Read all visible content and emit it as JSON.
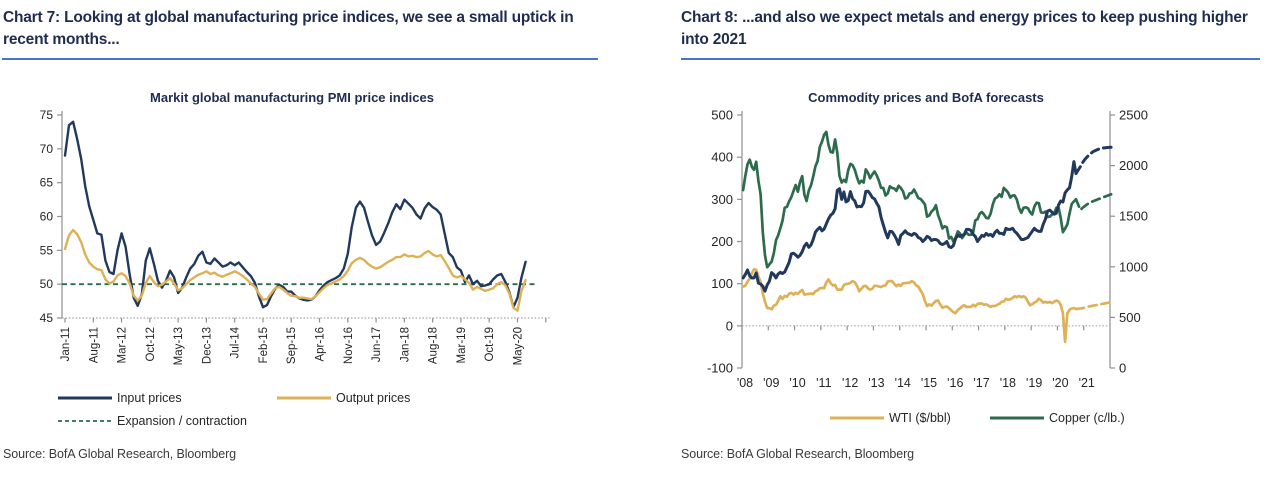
{
  "colors": {
    "heading_text": "#1f2c4f",
    "heading_rule": "#4a74c9",
    "navy": "#21395c",
    "gold": "#deb156",
    "green": "#2d6b4d",
    "axis_line": "#909090",
    "dotted_axis": "#a8a8a8",
    "tick_text": "#262626",
    "source_text": "#3a3a3a"
  },
  "panels": [
    {
      "heading": "Chart 7: Looking at global manufacturing price indices, we see a small uptick in recent months...",
      "source": "Source: BofA Global Research, Bloomberg"
    },
    {
      "heading": "Chart 8: ...and also we expect metals and energy prices to keep pushing higher into 2021",
      "source": "Source: BofA Global Research, Bloomberg"
    }
  ],
  "chart_data": [
    {
      "type": "line",
      "title": "Markit global manufacturing PMI price indices",
      "xlabel": "",
      "ylabel": "",
      "ylim": [
        45,
        75
      ],
      "y_ticks": [
        45,
        50,
        55,
        60,
        65,
        70,
        75
      ],
      "x_tick_labels": [
        "Jan-11",
        "Aug-11",
        "Mar-12",
        "Oct-12",
        "May-13",
        "Dec-13",
        "Jul-14",
        "Feb-15",
        "Sep-15",
        "Apr-16",
        "Nov-16",
        "Jun-17",
        "Jan-18",
        "Aug-18",
        "Mar-19",
        "Oct-19",
        "May-20"
      ],
      "x_months_between_ticks": 7,
      "grid": false,
      "legend_position": "bottom",
      "reference_line": {
        "label": "Expansion / contraction",
        "value": 50,
        "style": "dashed",
        "color_key": "green"
      },
      "series": [
        {
          "name": "Input prices",
          "color_key": "navy",
          "start": "Jan-11",
          "monthly_values": [
            69,
            73.5,
            74,
            71.5,
            68.5,
            64.5,
            61.5,
            59.5,
            57.5,
            57.3,
            53.5,
            51.8,
            51.5,
            55,
            57.5,
            55.5,
            51.5,
            48,
            46.8,
            48.5,
            53.5,
            55.3,
            53,
            50.5,
            49.5,
            50.5,
            52,
            51,
            48.7,
            49.5,
            51,
            52.3,
            53,
            54.2,
            54.8,
            53.2,
            53,
            53.8,
            53.2,
            52.6,
            52.8,
            53.2,
            52.8,
            53.2,
            52.5,
            51.8,
            51.2,
            50.2,
            48.2,
            46.6,
            46.9,
            48.2,
            49.3,
            49.9,
            49.6,
            48.9,
            48.9,
            48.3,
            47.9,
            47.7,
            47.6,
            47.7,
            48.2,
            49.1,
            49.8,
            50.3,
            50.6,
            50.9,
            51.3,
            52.3,
            54.5,
            58.5,
            61.3,
            62.2,
            61.3,
            59.2,
            57.2,
            55.8,
            56.3,
            57.6,
            59,
            60.6,
            61.8,
            61.1,
            62.5,
            61.9,
            61.3,
            60.3,
            59.7,
            61.2,
            62,
            61.4,
            61,
            60.3,
            57.4,
            54.6,
            54,
            52.5,
            52,
            50.3,
            51.3,
            50,
            50.5,
            49.7,
            49.8,
            50,
            50.7,
            51.3,
            51.5,
            50.3,
            48.8,
            46.6,
            48,
            51,
            53.3
          ]
        },
        {
          "name": "Output prices",
          "color_key": "gold",
          "start": "Jan-11",
          "monthly_values": [
            55.2,
            57.2,
            58,
            57.4,
            56.2,
            54.4,
            53.2,
            52.6,
            52.2,
            52.1,
            50.7,
            50.1,
            50.4,
            51.3,
            51.6,
            51.2,
            50.1,
            48.3,
            47.6,
            48.3,
            50.2,
            51.2,
            50.3,
            49.7,
            49.9,
            50.4,
            50.9,
            50.1,
            49.1,
            49.4,
            50,
            50.6,
            51,
            51.4,
            51.6,
            51.9,
            51.5,
            51.7,
            51.3,
            51.1,
            51.4,
            51.6,
            51.9,
            51.6,
            51.2,
            50.7,
            50.1,
            49.6,
            48.6,
            47.7,
            47.8,
            48.6,
            49.4,
            49.6,
            49.2,
            48.7,
            48.3,
            48.2,
            48,
            48,
            47.9,
            47.8,
            48.2,
            48.8,
            49.4,
            49.9,
            50.1,
            50.4,
            50.7,
            51.2,
            52,
            53.1,
            53.6,
            53.9,
            53.6,
            53,
            52.6,
            52.3,
            52.5,
            52.9,
            53.3,
            53.6,
            54,
            54,
            54.4,
            54.1,
            54.2,
            54,
            54.1,
            54.6,
            54.9,
            54.4,
            54.1,
            54.3,
            53.4,
            52.4,
            51.3,
            51,
            51.2,
            50.7,
            50.2,
            49.2,
            49.6,
            49.3,
            49,
            49.2,
            49.4,
            50,
            50.3,
            49.8,
            48.6,
            46.5,
            46.1,
            49,
            50.6
          ]
        }
      ]
    },
    {
      "type": "line",
      "title": "Commodity prices and BofA forecasts",
      "xlabel": "",
      "left_ylim": [
        -100,
        500
      ],
      "left_y_ticks": [
        -100,
        0,
        100,
        200,
        300,
        400,
        500
      ],
      "right_ylim": [
        0,
        2500
      ],
      "right_y_ticks": [
        0,
        500,
        1000,
        1500,
        2000,
        2500
      ],
      "x_tick_labels": [
        "'08",
        "'09",
        "'10",
        "'11",
        "'12",
        "'13",
        "'14",
        "'15",
        "'16",
        "'17",
        "'18",
        "'19",
        "'20",
        "'21"
      ],
      "x_range_years": [
        2008,
        2022
      ],
      "grid": false,
      "legend_position": "bottom",
      "forecast_note": "dashed segments are BofA forecasts",
      "series": [
        {
          "name": "WTI ($/bbl)",
          "axis": "left",
          "color_key": "gold",
          "in_legend": true,
          "monthly_values_from_2008": [
            93,
            95,
            105,
            112,
            125,
            134,
            133,
            117,
            104,
            77,
            57,
            42,
            42,
            39,
            48,
            50,
            59,
            70,
            64,
            71,
            69,
            76,
            78,
            74,
            78,
            76,
            81,
            85,
            74,
            75,
            76,
            77,
            75,
            82,
            84,
            89,
            90,
            89,
            103,
            110,
            101,
            96,
            97,
            86,
            86,
            86,
            97,
            99,
            100,
            102,
            106,
            103,
            95,
            82,
            88,
            94,
            95,
            89,
            86,
            88,
            95,
            95,
            93,
            92,
            95,
            96,
            105,
            106,
            106,
            100,
            94,
            98,
            95,
            101,
            101,
            102,
            102,
            106,
            103,
            96,
            93,
            84,
            76,
            59,
            47,
            51,
            48,
            54,
            59,
            60,
            51,
            43,
            45,
            46,
            42,
            37,
            32,
            30,
            38,
            41,
            46,
            49,
            45,
            45,
            45,
            50,
            46,
            52,
            53,
            53,
            50,
            51,
            48,
            45,
            47,
            47,
            50,
            52,
            57,
            58,
            64,
            62,
            63,
            66,
            70,
            68,
            71,
            68,
            70,
            67,
            57,
            49,
            51,
            55,
            58,
            64,
            61,
            55,
            57,
            55,
            57,
            54,
            57,
            60,
            58,
            50,
            30,
            -38,
            29,
            38,
            41,
            42,
            40
          ],
          "forecast_monthly_values": [
            41,
            42,
            43,
            45,
            46,
            47,
            48,
            49,
            50,
            51,
            52,
            53,
            54,
            55,
            56
          ]
        },
        {
          "name": "Copper (c/lb.)",
          "axis": "left",
          "color_key": "green",
          "in_legend": true,
          "monthly_values_from_2008": [
            322,
            355,
            383,
            394,
            377,
            370,
            389,
            344,
            312,
            222,
            167,
            139,
            146,
            152,
            172,
            203,
            214,
            231,
            249,
            280,
            282,
            295,
            305,
            320,
            334,
            318,
            341,
            355,
            311,
            296,
            321,
            333,
            354,
            378,
            391,
            424,
            437,
            453,
            460,
            429,
            412,
            411,
            442,
            410,
            355,
            340,
            346,
            341,
            369,
            384,
            381,
            370,
            352,
            338,
            344,
            340,
            371,
            363,
            350,
            359,
            366,
            357,
            344,
            327,
            327,
            309,
            314,
            331,
            327,
            326,
            320,
            332,
            327,
            319,
            302,
            304,
            314,
            315,
            323,
            314,
            303,
            301,
            295,
            288,
            259,
            262,
            271,
            276,
            286,
            263,
            249,
            231,
            236,
            234,
            207,
            211,
            200,
            209,
            224,
            219,
            208,
            216,
            221,
            216,
            216,
            221,
            250,
            253,
            266,
            270,
            264,
            256,
            255,
            266,
            288,
            302,
            305,
            312,
            306,
            327,
            322,
            316,
            304,
            309,
            309,
            299,
            279,
            268,
            280,
            281,
            279,
            270,
            264,
            283,
            292,
            291,
            269,
            268,
            271,
            258,
            259,
            264,
            266,
            280,
            281,
            256,
            222,
            231,
            240,
            266,
            289,
            295,
            300
          ],
          "forecast_monthly_values": [
            275,
            280,
            284,
            288,
            291,
            294,
            296,
            298,
            300,
            302,
            304,
            306,
            308,
            310,
            312
          ]
        },
        {
          "name": "",
          "axis": "right",
          "color_key": "navy",
          "in_legend": false,
          "monthly_values_from_2008": [
            890,
            924,
            968,
            910,
            889,
            890,
            940,
            839,
            830,
            807,
            760,
            820,
            858,
            943,
            924,
            890,
            929,
            946,
            934,
            949,
            996,
            1043,
            1127,
            1134,
            1118,
            1095,
            1113,
            1149,
            1205,
            1232,
            1193,
            1216,
            1271,
            1342,
            1370,
            1390,
            1356,
            1373,
            1424,
            1474,
            1511,
            1529,
            1573,
            1756,
            1772,
            1666,
            1739,
            1641,
            1654,
            1743,
            1674,
            1650,
            1591,
            1598,
            1594,
            1630,
            1745,
            1747,
            1721,
            1684,
            1672,
            1628,
            1593,
            1487,
            1414,
            1343,
            1286,
            1351,
            1348,
            1316,
            1276,
            1221,
            1310,
            1330,
            1355,
            1330,
            1320,
            1310,
            1330,
            1320,
            1290,
            1280,
            1250,
            1270,
            1300,
            1290,
            1260,
            1270,
            1270,
            1260,
            1230,
            1220,
            1230,
            1250,
            1200,
            1190,
            1210,
            1280,
            1310,
            1300,
            1310,
            1320,
            1370,
            1370,
            1360,
            1320,
            1300,
            1250,
            1280,
            1310,
            1300,
            1330,
            1310,
            1320,
            1300,
            1340,
            1360,
            1330,
            1330,
            1320,
            1380,
            1370,
            1370,
            1380,
            1350,
            1330,
            1300,
            1270,
            1270,
            1280,
            1290,
            1320,
            1350,
            1380,
            1360,
            1350,
            1350,
            1420,
            1470,
            1550,
            1560,
            1540,
            1520,
            1530,
            1610,
            1650,
            1640,
            1730,
            1760,
            1780,
            1890,
            2040,
            1922
          ],
          "forecast_monthly_values": [
            1990,
            2030,
            2060,
            2085,
            2105,
            2125,
            2140,
            2150,
            2160,
            2168,
            2172,
            2175,
            2178,
            2180,
            2182
          ]
        }
      ]
    }
  ]
}
